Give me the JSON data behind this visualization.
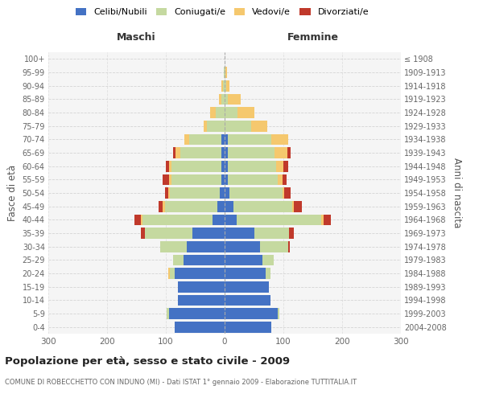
{
  "age_groups": [
    "0-4",
    "5-9",
    "10-14",
    "15-19",
    "20-24",
    "25-29",
    "30-34",
    "35-39",
    "40-44",
    "45-49",
    "50-54",
    "55-59",
    "60-64",
    "65-69",
    "70-74",
    "75-79",
    "80-84",
    "85-89",
    "90-94",
    "95-99",
    "100+"
  ],
  "birth_years": [
    "2004-2008",
    "1999-2003",
    "1994-1998",
    "1989-1993",
    "1984-1988",
    "1979-1983",
    "1974-1978",
    "1969-1973",
    "1964-1968",
    "1959-1963",
    "1954-1958",
    "1949-1953",
    "1944-1948",
    "1939-1943",
    "1934-1938",
    "1929-1933",
    "1924-1928",
    "1919-1923",
    "1914-1918",
    "1909-1913",
    "≤ 1908"
  ],
  "males_celibi": [
    85,
    95,
    80,
    80,
    85,
    70,
    65,
    55,
    20,
    12,
    8,
    5,
    5,
    5,
    5,
    0,
    0,
    0,
    0,
    0,
    0
  ],
  "males_coniugati": [
    0,
    3,
    0,
    0,
    8,
    18,
    45,
    80,
    120,
    90,
    85,
    85,
    85,
    70,
    55,
    30,
    15,
    5,
    3,
    2,
    0
  ],
  "males_vedovi": [
    0,
    0,
    0,
    0,
    3,
    0,
    0,
    0,
    3,
    3,
    3,
    5,
    5,
    8,
    8,
    5,
    10,
    5,
    2,
    0,
    0
  ],
  "males_divorziati": [
    0,
    0,
    0,
    0,
    0,
    0,
    0,
    8,
    10,
    8,
    5,
    10,
    5,
    5,
    0,
    0,
    0,
    0,
    0,
    0,
    0
  ],
  "females_nubili": [
    80,
    90,
    78,
    75,
    70,
    65,
    60,
    50,
    20,
    15,
    8,
    5,
    5,
    5,
    5,
    0,
    0,
    0,
    0,
    0,
    0
  ],
  "females_coniugate": [
    0,
    3,
    0,
    0,
    8,
    18,
    48,
    60,
    145,
    100,
    90,
    85,
    82,
    80,
    75,
    45,
    22,
    5,
    3,
    2,
    0
  ],
  "females_vedove": [
    0,
    0,
    0,
    0,
    0,
    0,
    0,
    0,
    3,
    3,
    3,
    8,
    13,
    22,
    28,
    28,
    28,
    22,
    5,
    2,
    0
  ],
  "females_divorziate": [
    0,
    0,
    0,
    0,
    0,
    0,
    3,
    8,
    13,
    13,
    12,
    8,
    8,
    5,
    0,
    0,
    0,
    0,
    0,
    0,
    0
  ],
  "colors": {
    "celibi_nubili": "#4472C4",
    "coniugati": "#C5D9A0",
    "vedovi": "#F5C86E",
    "divorziati": "#C0392B"
  },
  "xlim": 300,
  "title": "Popolazione per età, sesso e stato civile - 2009",
  "subtitle": "COMUNE DI ROBECCHETTO CON INDUNO (MI) - Dati ISTAT 1° gennaio 2009 - Elaborazione TUTTITALIA.IT",
  "ylabel_left": "Fasce di età",
  "ylabel_right": "Anni di nascita",
  "xlabel_left": "Maschi",
  "xlabel_right": "Femmine",
  "bg_color": "#F5F5F5",
  "grid_color": "#CCCCCC"
}
